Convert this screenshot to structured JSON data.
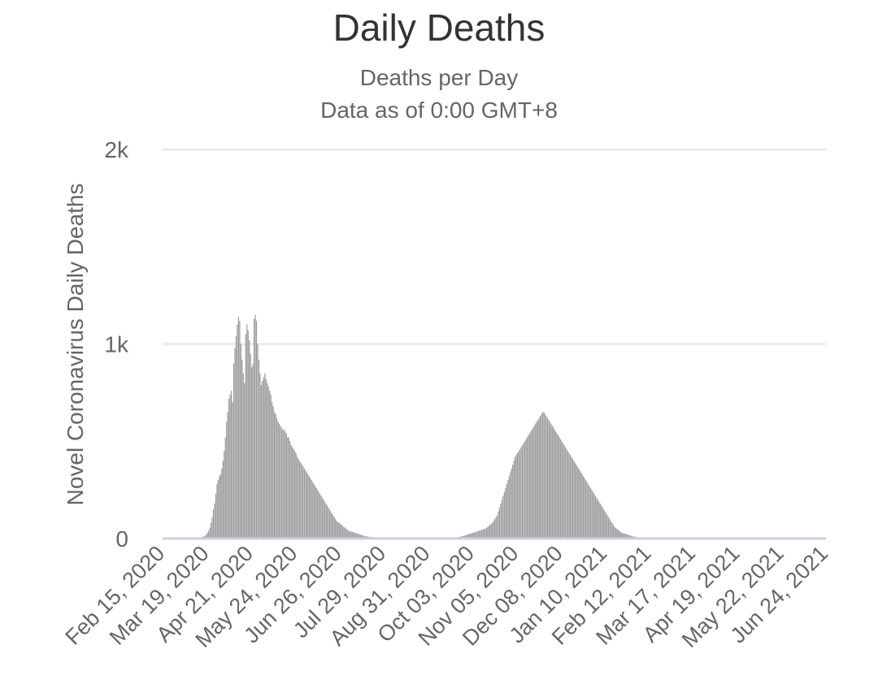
{
  "chart_data": {
    "type": "bar",
    "title": "Daily Deaths",
    "subtitle": "Deaths per Day",
    "subtitle2": "Data as of 0:00 GMT+8",
    "ylabel": "Novel Coronavirus Daily Deaths",
    "xlabel": "",
    "ylim": [
      0,
      2000
    ],
    "yticks": [
      {
        "value": 0,
        "label": "0"
      },
      {
        "value": 1000,
        "label": "1k"
      },
      {
        "value": 2000,
        "label": "2k"
      }
    ],
    "x_start": "Feb 15, 2020",
    "xticks": [
      "Feb 15, 2020",
      "Mar 19, 2020",
      "Apr 21, 2020",
      "May 24, 2020",
      "Jun 26, 2020",
      "Jul 29, 2020",
      "Aug 31, 2020",
      "Oct 03, 2020",
      "Nov 05, 2020",
      "Dec 08, 2020",
      "Jan 10, 2021",
      "Feb 12, 2021",
      "Mar 17, 2021",
      "Apr 19, 2021",
      "May 22, 2021",
      "Jun 24, 2021"
    ],
    "grid": true,
    "legend": "none",
    "colors": {
      "bar": "#9e9e9e",
      "grid": "#e3e3e3",
      "baseline": "#c9cfe6",
      "text": "#666666",
      "title": "#333333"
    },
    "series": [
      {
        "values": [
          0,
          0,
          0,
          0,
          0,
          0,
          0,
          0,
          0,
          0,
          0,
          0,
          0,
          0,
          0,
          0,
          0,
          0,
          0,
          0,
          0,
          0,
          0,
          0,
          0,
          0,
          0,
          0,
          0,
          2,
          5,
          5,
          7,
          8,
          10,
          15,
          20,
          30,
          40,
          55,
          80,
          110,
          150,
          180,
          230,
          280,
          300,
          320,
          330,
          360,
          400,
          450,
          520,
          600,
          650,
          720,
          740,
          760,
          700,
          900,
          980,
          1040,
          1100,
          1140,
          1120,
          1000,
          920,
          850,
          800,
          1050,
          1100,
          1070,
          1020,
          950,
          880,
          900,
          1130,
          1150,
          1120,
          1000,
          920,
          850,
          790,
          810,
          830,
          850,
          820,
          800,
          780,
          760,
          740,
          700,
          680,
          650,
          640,
          620,
          600,
          590,
          580,
          570,
          560,
          560,
          550,
          540,
          520,
          520,
          500,
          480,
          470,
          460,
          450,
          440,
          420,
          410,
          400,
          390,
          380,
          370,
          360,
          350,
          340,
          330,
          320,
          310,
          300,
          290,
          280,
          270,
          260,
          250,
          240,
          230,
          220,
          210,
          200,
          190,
          180,
          170,
          160,
          150,
          140,
          130,
          120,
          110,
          100,
          90,
          85,
          80,
          75,
          70,
          65,
          60,
          55,
          50,
          45,
          40,
          38,
          36,
          34,
          32,
          30,
          28,
          26,
          24,
          22,
          20,
          18,
          16,
          14,
          12,
          11,
          10,
          9,
          8,
          8,
          7,
          7,
          6,
          6,
          5,
          5,
          5,
          4,
          4,
          4,
          4,
          3,
          3,
          3,
          3,
          3,
          3,
          3,
          3,
          2,
          2,
          2,
          2,
          2,
          2,
          2,
          2,
          2,
          2,
          2,
          2,
          2,
          2,
          2,
          2,
          2,
          2,
          2,
          2,
          2,
          2,
          2,
          2,
          2,
          2,
          2,
          2,
          2,
          2,
          2,
          2,
          2,
          2,
          2,
          2,
          2,
          2,
          2,
          2,
          2,
          2,
          3,
          3,
          3,
          3,
          3,
          4,
          4,
          5,
          5,
          6,
          7,
          8,
          9,
          10,
          12,
          14,
          16,
          18,
          20,
          22,
          24,
          26,
          28,
          30,
          32,
          34,
          36,
          38,
          40,
          42,
          44,
          46,
          48,
          50,
          55,
          60,
          65,
          70,
          75,
          80,
          90,
          100,
          110,
          120,
          140,
          160,
          180,
          200,
          220,
          240,
          260,
          280,
          300,
          320,
          340,
          360,
          380,
          400,
          420,
          430,
          440,
          450,
          460,
          470,
          480,
          490,
          500,
          510,
          520,
          530,
          540,
          550,
          560,
          570,
          580,
          590,
          600,
          610,
          620,
          630,
          640,
          650,
          650,
          640,
          630,
          620,
          610,
          600,
          590,
          580,
          570,
          560,
          550,
          540,
          530,
          520,
          510,
          500,
          490,
          480,
          470,
          460,
          450,
          440,
          430,
          420,
          410,
          400,
          390,
          380,
          370,
          360,
          350,
          340,
          330,
          320,
          310,
          300,
          290,
          280,
          270,
          260,
          250,
          240,
          230,
          220,
          210,
          200,
          190,
          180,
          170,
          160,
          150,
          140,
          130,
          120,
          110,
          100,
          90,
          80,
          70,
          60,
          55,
          50,
          45,
          40,
          35,
          30,
          28,
          26,
          24,
          22,
          20,
          18,
          16,
          14,
          12,
          10,
          9,
          8,
          7,
          6,
          5,
          5,
          4,
          4,
          3,
          3,
          3,
          3,
          2,
          2,
          2,
          2,
          2,
          2,
          2,
          2,
          2,
          2,
          2,
          2,
          2,
          2,
          2,
          2,
          2,
          2,
          2,
          2,
          2,
          2,
          2,
          2,
          2,
          2,
          2,
          2,
          2,
          2,
          2,
          2,
          2,
          2,
          2,
          2,
          2,
          2,
          2,
          2,
          2,
          2,
          2,
          2,
          2,
          2,
          2,
          2,
          2,
          2,
          2,
          2,
          2,
          2,
          2,
          2,
          2,
          2,
          2,
          2,
          2,
          2,
          2,
          2,
          2,
          2,
          2,
          2,
          2,
          2,
          2,
          2,
          2,
          2,
          2,
          2,
          2,
          2,
          2,
          2,
          2,
          2,
          2,
          2,
          2,
          2,
          2,
          2,
          2,
          2,
          2,
          2,
          2,
          2,
          2,
          2,
          2,
          2,
          2,
          2,
          2,
          2,
          2,
          2,
          2,
          2,
          2,
          2,
          2,
          2,
          2,
          2,
          2,
          2,
          2,
          2,
          2,
          2,
          2,
          2,
          2,
          2,
          2,
          2,
          2,
          2,
          2,
          2,
          2,
          2,
          2,
          2,
          2,
          2,
          2,
          2,
          2,
          2,
          2,
          2,
          2,
          2,
          2,
          2,
          2,
          2,
          2,
          2
        ]
      }
    ]
  }
}
